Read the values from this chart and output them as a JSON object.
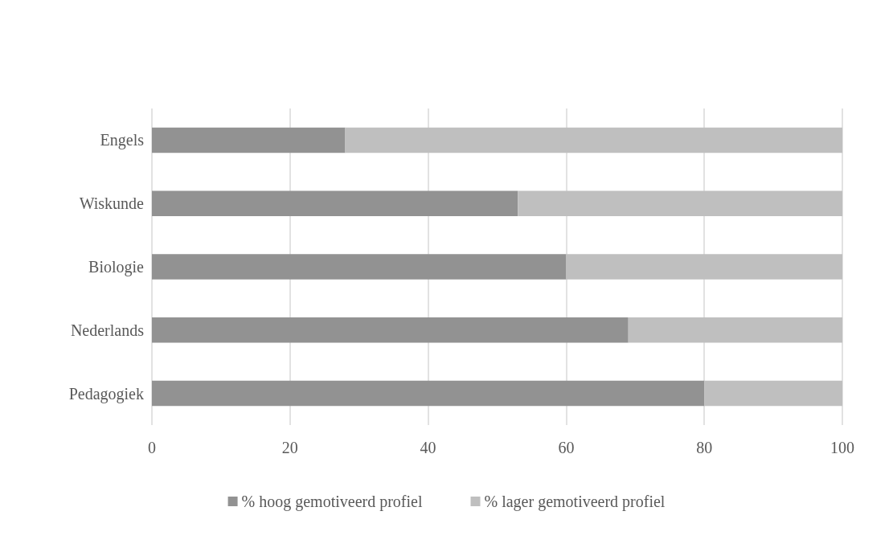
{
  "chart_data": {
    "type": "bar",
    "orientation": "horizontal",
    "stacked": true,
    "categories": [
      "Engels",
      "Wiskunde",
      "Biologie",
      "Nederlands",
      "Pedagogiek"
    ],
    "series": [
      {
        "name": "% hoog gemotiveerd profiel",
        "color": "#929292",
        "values": [
          28,
          53,
          60,
          69,
          80
        ]
      },
      {
        "name": "% lager gemotiveerd profiel",
        "color": "#bfbfbf",
        "values": [
          72,
          47,
          40,
          31,
          20
        ]
      }
    ],
    "xlim": [
      0,
      100
    ],
    "xticks": [
      0,
      20,
      40,
      60,
      80,
      100
    ],
    "grid": "x",
    "legend": "bottom"
  }
}
